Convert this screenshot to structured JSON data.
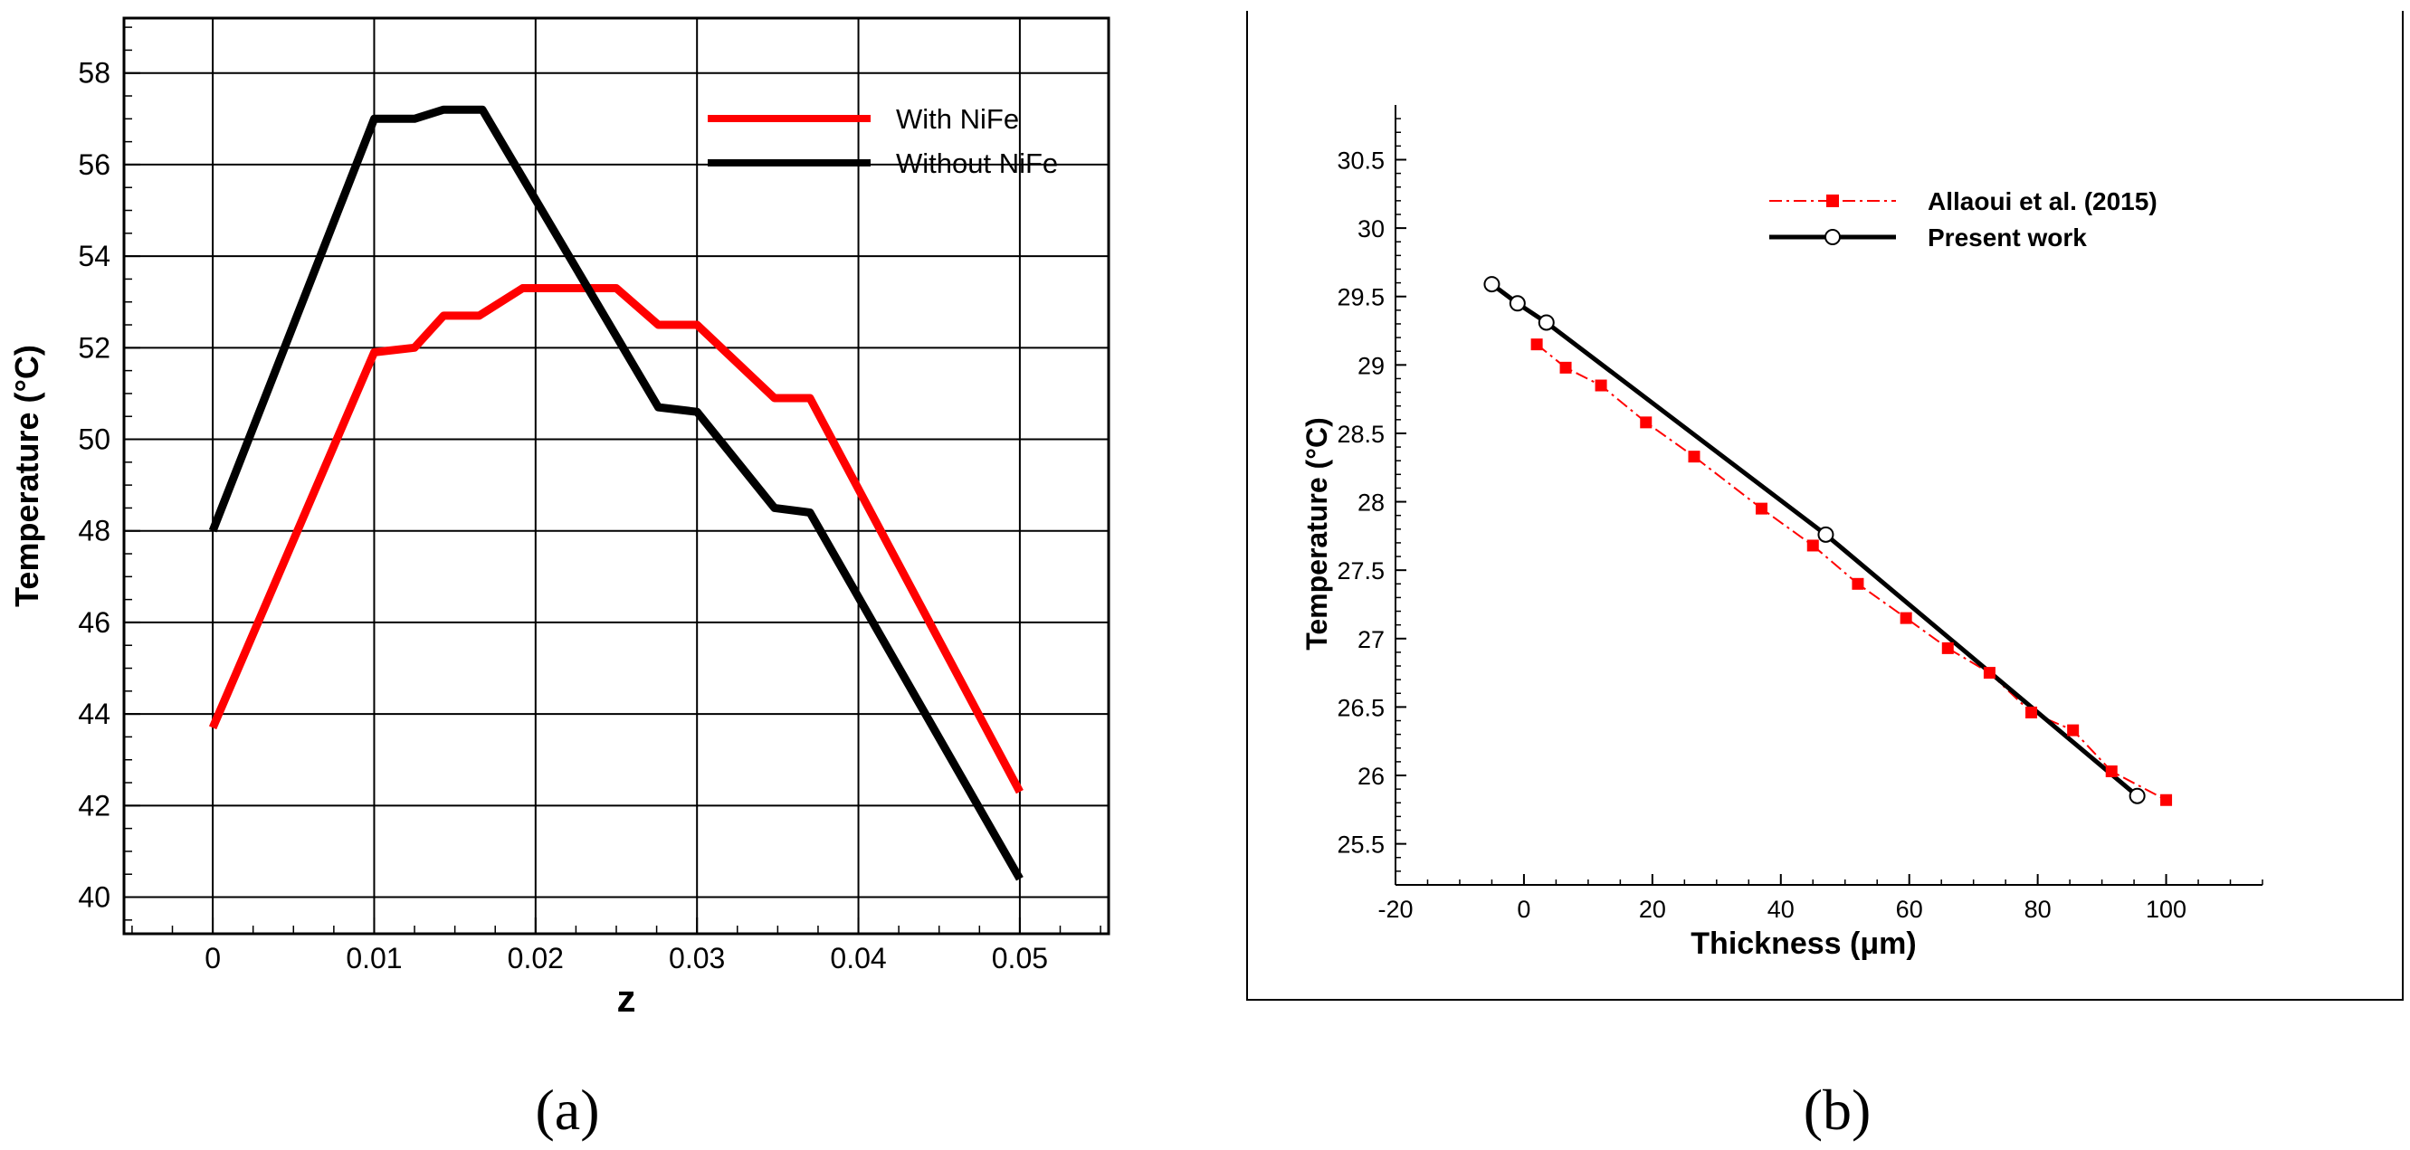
{
  "panel_a": {
    "caption": "(a)",
    "chart_data": {
      "type": "line",
      "xlabel": "z",
      "ylabel": "Temperature (°C)",
      "xlim": [
        -0.0055,
        0.0555
      ],
      "ylim": [
        39.2,
        59.2
      ],
      "x_ticks": [
        0,
        0.01,
        0.02,
        0.03,
        0.04,
        0.05
      ],
      "x_tick_labels": [
        "0",
        "0.01",
        "0.02",
        "0.03",
        "0.04",
        "0.05"
      ],
      "y_ticks": [
        40,
        42,
        44,
        46,
        48,
        50,
        52,
        54,
        56,
        58
      ],
      "y_tick_labels": [
        "40",
        "42",
        "44",
        "46",
        "48",
        "50",
        "52",
        "54",
        "56",
        "58"
      ],
      "grid": true,
      "legend_position": "top-right",
      "series": [
        {
          "name": "With NiFe",
          "color": "#ff0000",
          "x": [
            0,
            0.01,
            0.0125,
            0.0143,
            0.0165,
            0.0192,
            0.025,
            0.0276,
            0.03,
            0.0348,
            0.037,
            0.05
          ],
          "y": [
            43.7,
            51.9,
            52.0,
            52.7,
            52.7,
            53.3,
            53.3,
            52.5,
            52.5,
            50.9,
            50.9,
            42.3
          ]
        },
        {
          "name": "Without NiFe",
          "color": "#000000",
          "x": [
            0,
            0.01,
            0.0125,
            0.0143,
            0.0167,
            0.0276,
            0.03,
            0.0348,
            0.037,
            0.05
          ],
          "y": [
            48.0,
            57.0,
            57.0,
            57.2,
            57.2,
            50.7,
            50.6,
            48.5,
            48.4,
            40.4
          ]
        }
      ]
    }
  },
  "panel_b": {
    "caption": "(b)",
    "chart_data": {
      "type": "line",
      "xlabel": "Thickness (μm)",
      "ylabel": "Temperature (°C)",
      "xlim": [
        -20,
        115
      ],
      "ylim": [
        25.2,
        30.9
      ],
      "x_ticks": [
        -20,
        0,
        20,
        40,
        60,
        80,
        100
      ],
      "x_tick_labels": [
        "-20",
        "0",
        "20",
        "40",
        "60",
        "80",
        "100"
      ],
      "y_ticks": [
        25.5,
        26,
        26.5,
        27,
        27.5,
        28,
        28.5,
        29,
        29.5,
        30,
        30.5
      ],
      "y_tick_labels": [
        "25.5",
        "26",
        "26.5",
        "27",
        "27.5",
        "28",
        "28.5",
        "29",
        "29.5",
        "30",
        "30.5"
      ],
      "grid": false,
      "legend_position": "top-right",
      "series": [
        {
          "name": "Allaoui et al. (2015)",
          "color": "#ff0000",
          "marker": "square",
          "x": [
            2,
            6.5,
            12,
            19,
            26.5,
            37,
            45,
            52,
            59.5,
            66,
            72.5,
            79,
            85.5,
            91.5,
            100
          ],
          "y": [
            29.15,
            28.98,
            28.85,
            28.58,
            28.33,
            27.95,
            27.68,
            27.4,
            27.15,
            26.93,
            26.75,
            26.46,
            26.33,
            26.03,
            25.82
          ]
        },
        {
          "name": "Present work",
          "color": "#000000",
          "marker": "circle",
          "x": [
            -5,
            -1,
            3.5,
            47,
            95.5
          ],
          "y": [
            29.59,
            29.45,
            29.31,
            27.76,
            25.85
          ]
        }
      ]
    }
  }
}
